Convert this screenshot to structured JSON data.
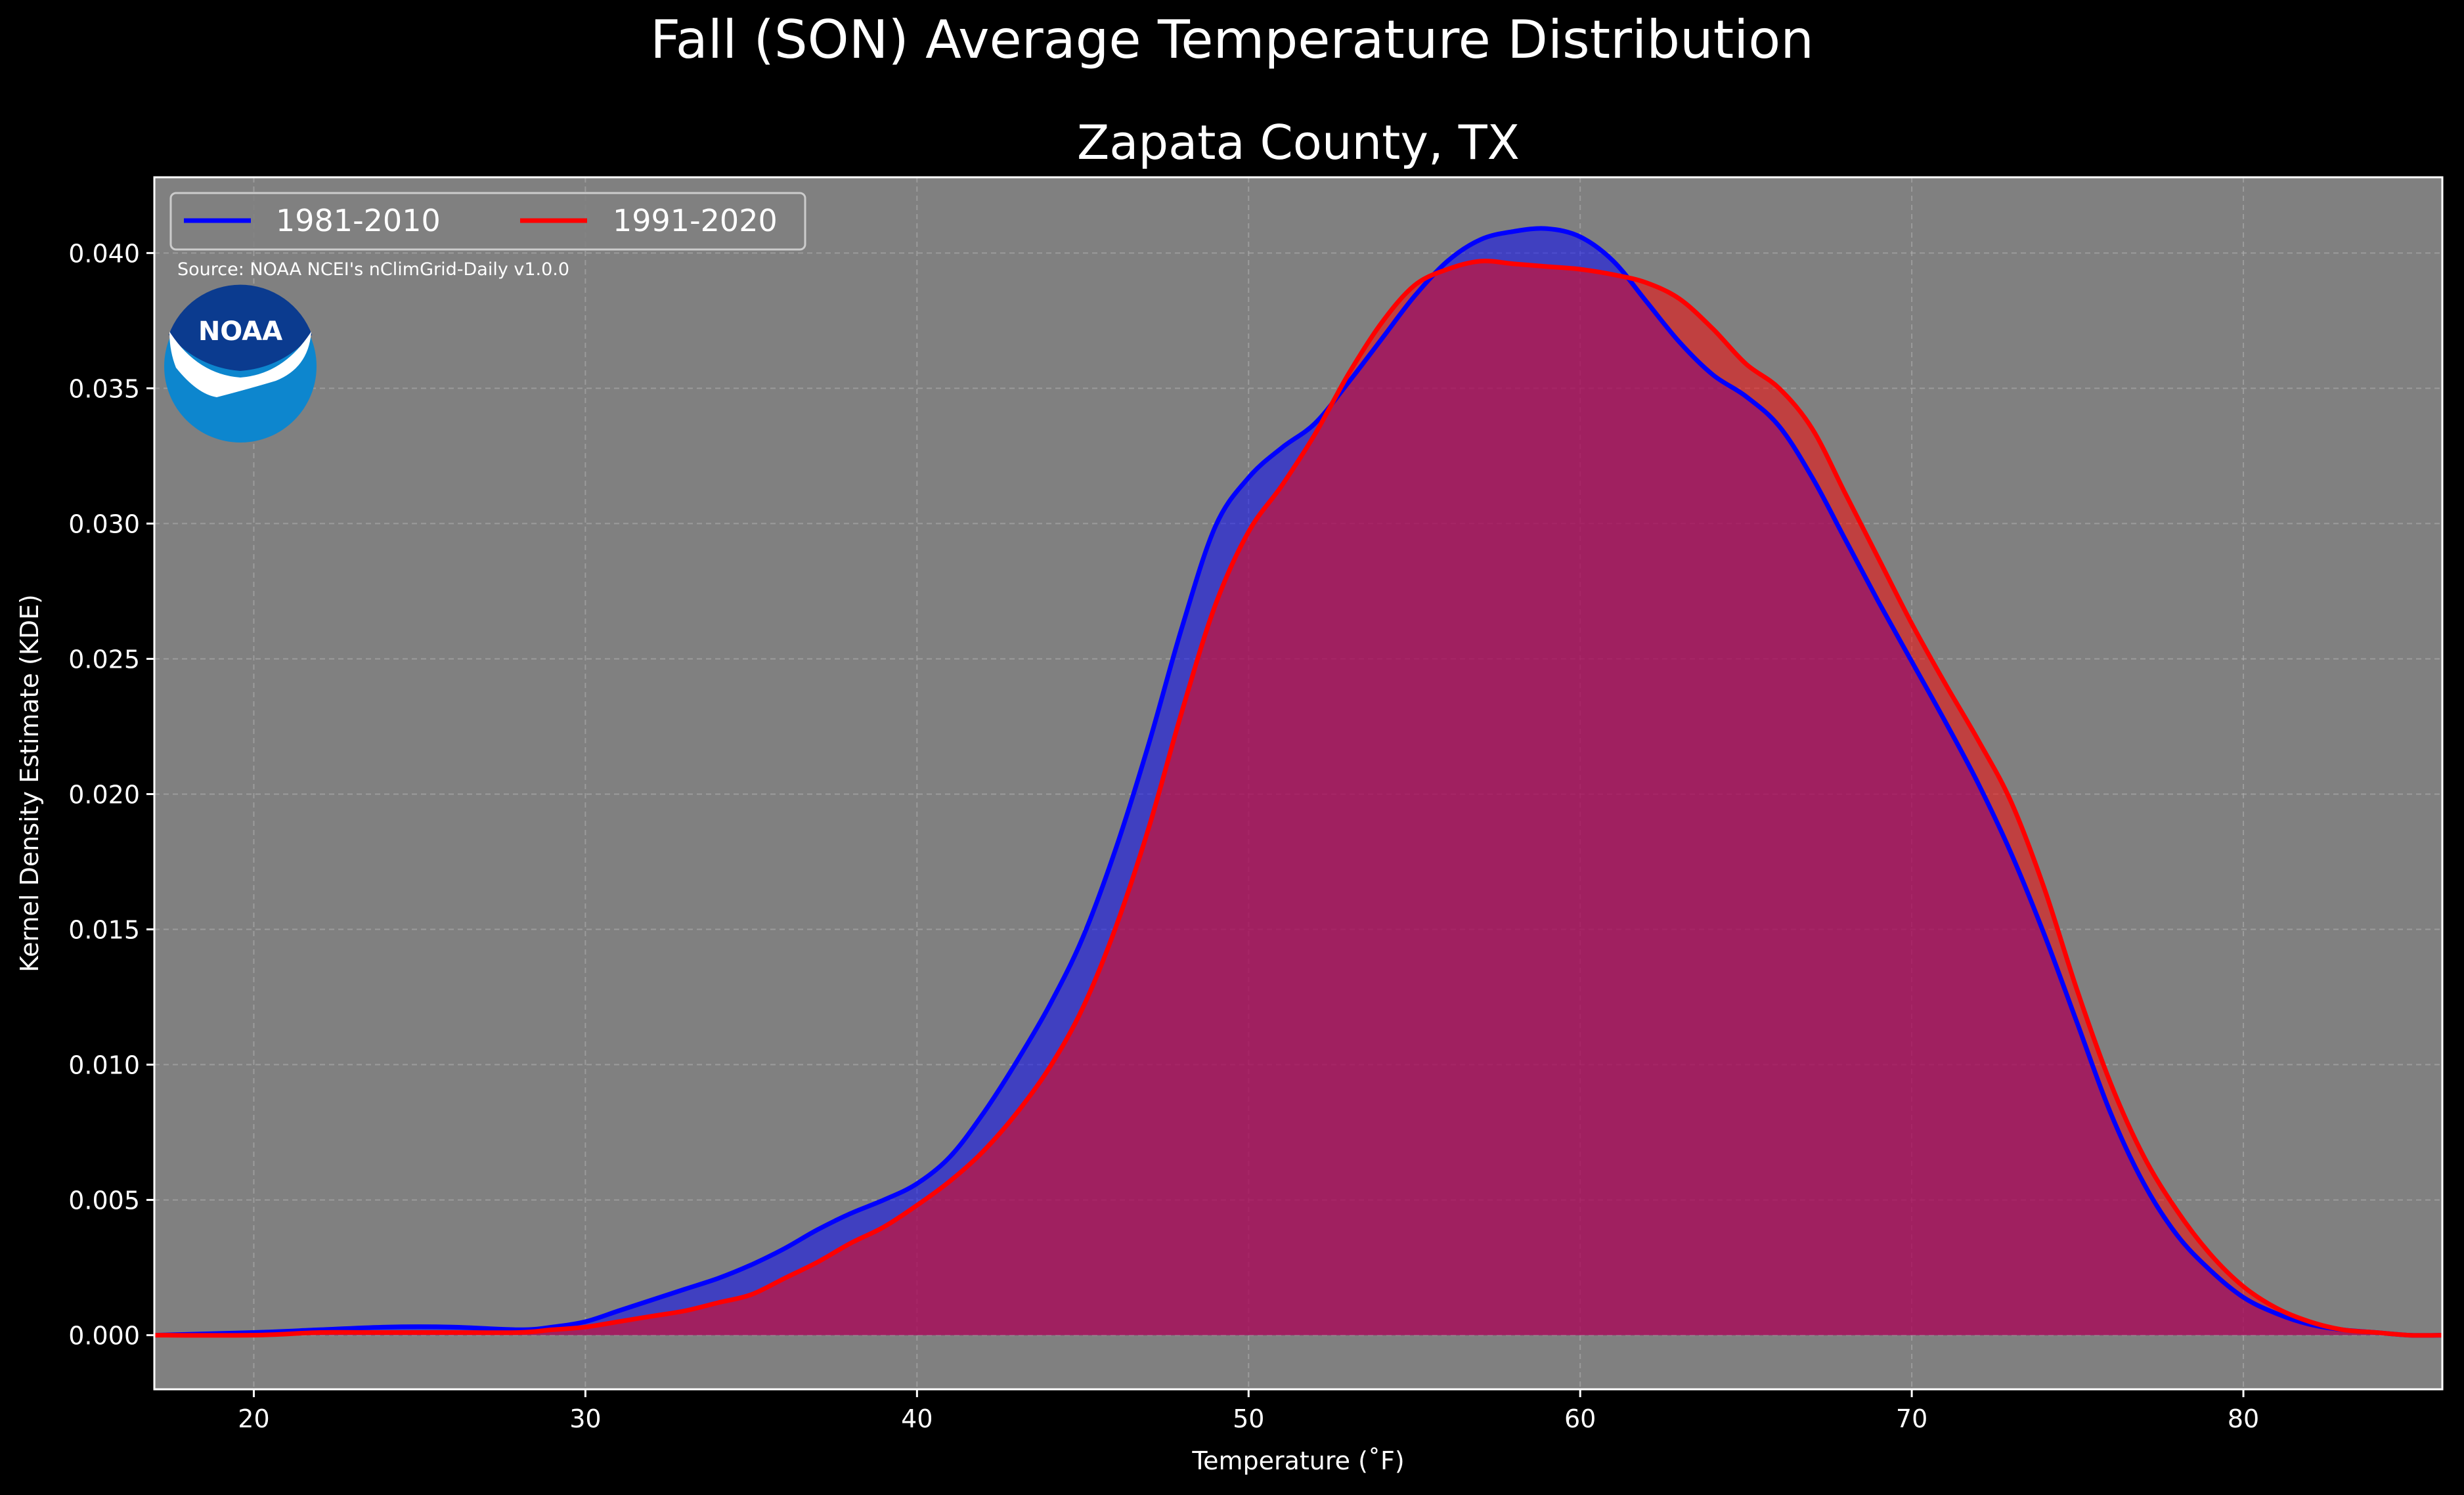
{
  "suptitle": "Fall (SON) Average Temperature Distribution",
  "source_note": "Source: NOAA NCEI's nClimGrid-Daily v1.0.0",
  "logo_text": "NOAA",
  "colors": {
    "figure_bg": "#000000",
    "axes_bg": "#808080",
    "series1": "#0000ff",
    "series2": "#ff0000",
    "grid": "#b0b0b0",
    "logo_outer": "#0d86ce",
    "logo_inner": "#0b3b8f"
  },
  "chart_data": {
    "type": "area",
    "title": "Zapata County, TX",
    "xlabel": "Temperature ($^\\circ$F)",
    "xlabel_display": "Temperature (˚F)",
    "ylabel": "Kernel Density Estimate (KDE)",
    "xlim": [
      17,
      86
    ],
    "ylim": [
      -0.002,
      0.0428
    ],
    "xticks": [
      20,
      30,
      40,
      50,
      60,
      70,
      80
    ],
    "xtick_labels": [
      "20",
      "30",
      "40",
      "50",
      "60",
      "70",
      "80"
    ],
    "yticks": [
      0.0,
      0.005,
      0.01,
      0.015,
      0.02,
      0.025,
      0.03,
      0.035,
      0.04
    ],
    "ytick_labels": [
      "0.000",
      "0.005",
      "0.010",
      "0.015",
      "0.020",
      "0.025",
      "0.030",
      "0.035",
      "0.040"
    ],
    "grid": true,
    "legend_placement": "upper-left",
    "series": [
      {
        "name": "1981-2010",
        "color": "#0000ff",
        "x": [
          17,
          20,
          22,
          24,
          26,
          28,
          29,
          30,
          31,
          32,
          33,
          34,
          35,
          36,
          37,
          38,
          39,
          40,
          41,
          42,
          43,
          44,
          45,
          46,
          47,
          48,
          49,
          50,
          51,
          52,
          53,
          54,
          55,
          56,
          57,
          58,
          59,
          60,
          61,
          62,
          63,
          64,
          65,
          66,
          67,
          68,
          69,
          70,
          71,
          72,
          73,
          74,
          75,
          76,
          77,
          78,
          79,
          80,
          81,
          82,
          83,
          84,
          85,
          86
        ],
        "y": [
          0.0,
          0.0001,
          0.0002,
          0.0003,
          0.0003,
          0.0002,
          0.0003,
          0.0005,
          0.0009,
          0.0013,
          0.0017,
          0.0021,
          0.0026,
          0.0032,
          0.0039,
          0.0045,
          0.005,
          0.0056,
          0.0066,
          0.0082,
          0.0101,
          0.0122,
          0.0147,
          0.018,
          0.0219,
          0.0262,
          0.0299,
          0.0317,
          0.0328,
          0.0337,
          0.0352,
          0.0368,
          0.0384,
          0.0397,
          0.0405,
          0.0408,
          0.0409,
          0.0406,
          0.0397,
          0.0382,
          0.0367,
          0.0355,
          0.0347,
          0.0336,
          0.0317,
          0.0294,
          0.0271,
          0.0249,
          0.0227,
          0.0204,
          0.0178,
          0.0148,
          0.0115,
          0.0082,
          0.0056,
          0.0037,
          0.0024,
          0.0014,
          0.0008,
          0.0004,
          0.0002,
          0.0001,
          0.0,
          0.0
        ]
      },
      {
        "name": "1991-2020",
        "color": "#ff0000",
        "x": [
          17,
          20,
          22,
          24,
          26,
          28,
          29,
          30,
          31,
          32,
          33,
          34,
          35,
          36,
          37,
          38,
          39,
          40,
          41,
          42,
          43,
          44,
          45,
          46,
          47,
          48,
          49,
          50,
          51,
          52,
          53,
          54,
          55,
          56,
          57,
          58,
          59,
          60,
          61,
          62,
          63,
          64,
          65,
          66,
          67,
          68,
          69,
          70,
          71,
          72,
          73,
          74,
          75,
          76,
          77,
          78,
          79,
          80,
          81,
          82,
          83,
          84,
          85,
          86
        ],
        "y": [
          0.0,
          0.0,
          0.0001,
          0.0001,
          0.0001,
          0.0001,
          0.0002,
          0.0003,
          0.0005,
          0.0007,
          0.0009,
          0.0012,
          0.0015,
          0.0021,
          0.0027,
          0.0034,
          0.004,
          0.0048,
          0.0057,
          0.0068,
          0.0082,
          0.0099,
          0.0121,
          0.0151,
          0.0188,
          0.0231,
          0.027,
          0.0297,
          0.0314,
          0.0333,
          0.0355,
          0.0374,
          0.0388,
          0.0394,
          0.0397,
          0.0396,
          0.0395,
          0.0394,
          0.0392,
          0.0389,
          0.0383,
          0.0372,
          0.0359,
          0.035,
          0.0335,
          0.0311,
          0.0287,
          0.0263,
          0.0241,
          0.022,
          0.0197,
          0.0165,
          0.0127,
          0.0093,
          0.0066,
          0.0046,
          0.003,
          0.0018,
          0.001,
          0.0005,
          0.0002,
          0.0001,
          0.0,
          0.0
        ]
      }
    ]
  }
}
